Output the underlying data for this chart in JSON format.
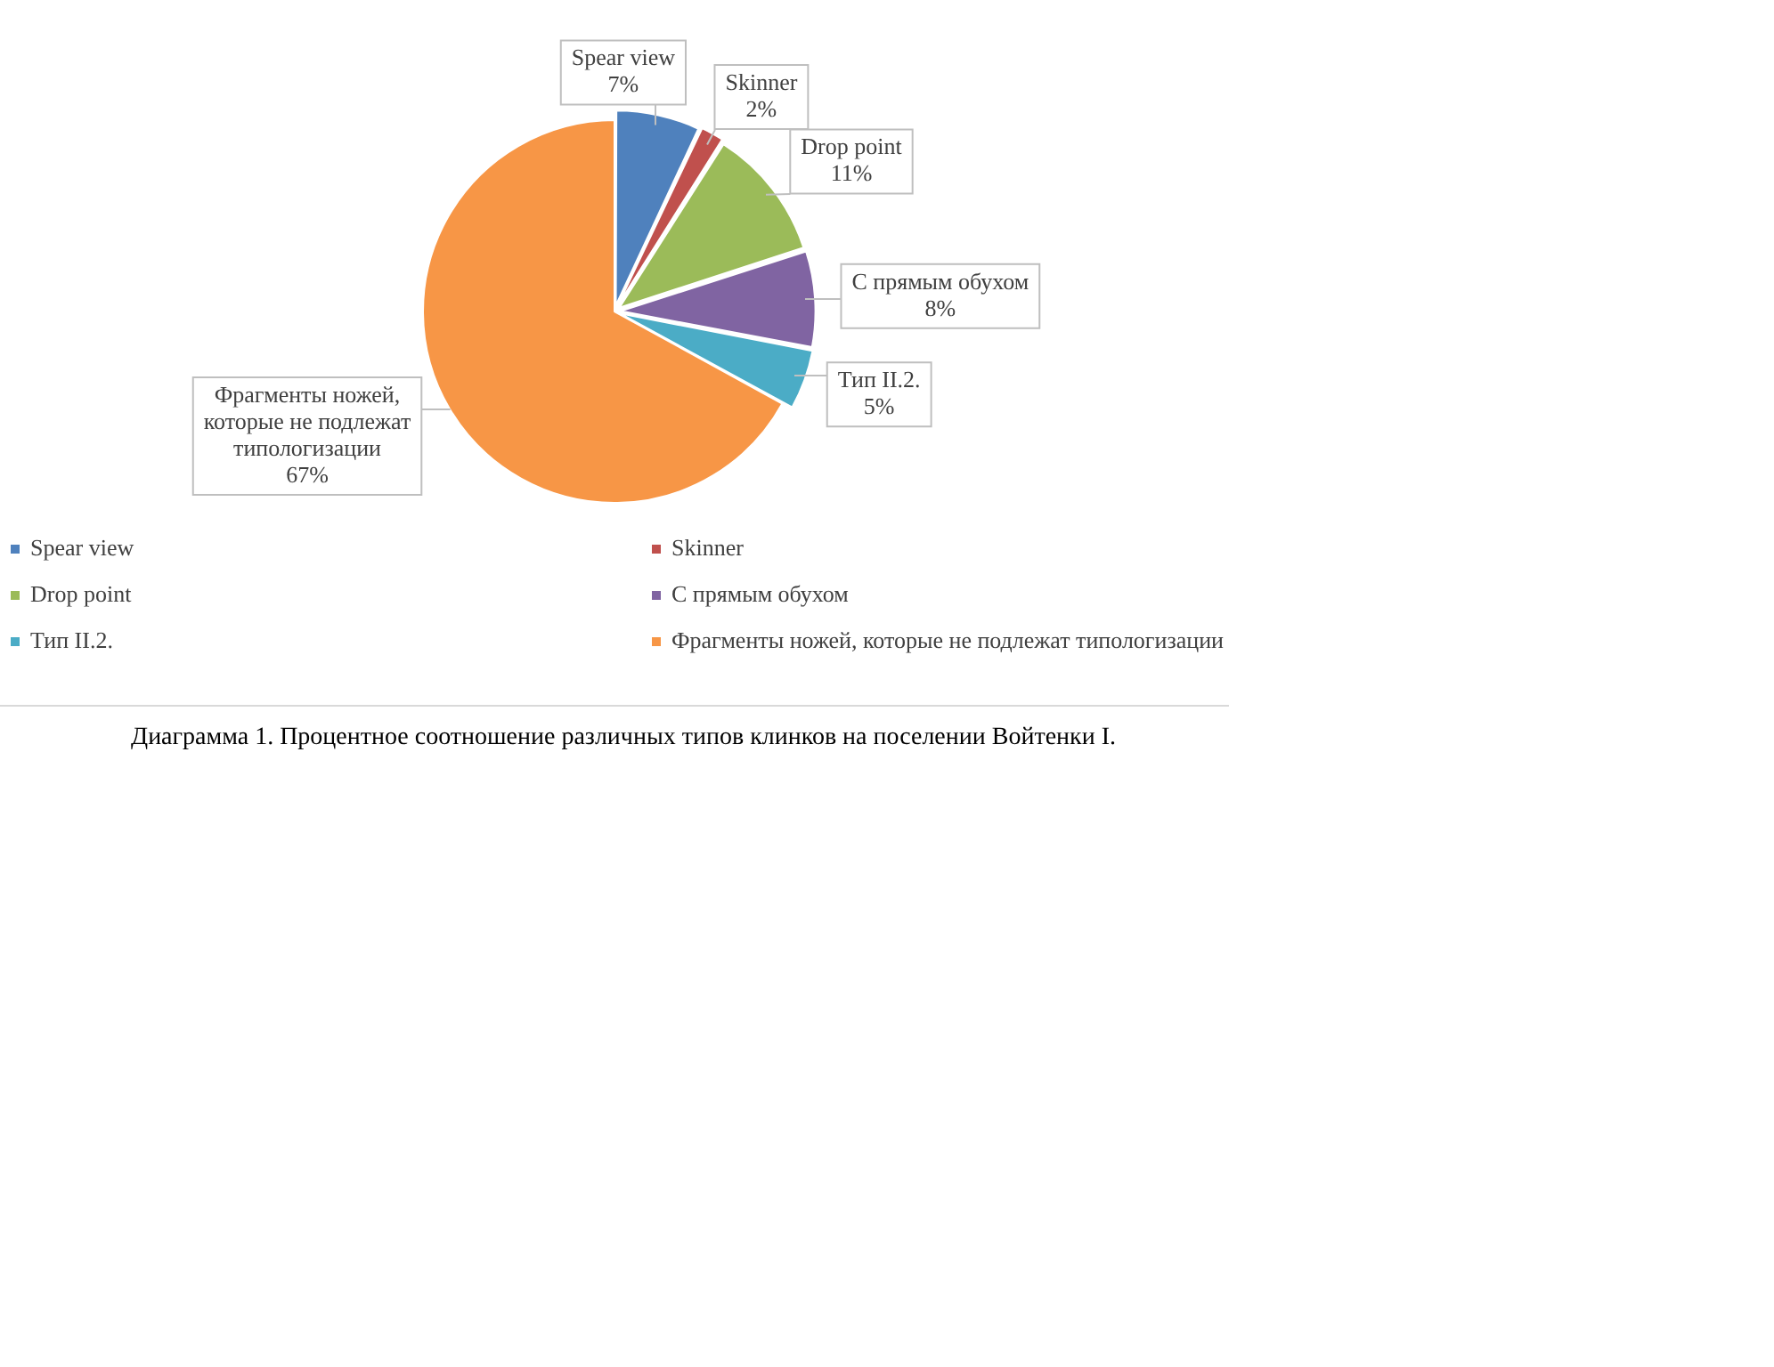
{
  "chart_data": {
    "type": "pie",
    "categories": [
      "Spear view",
      "Skinner",
      "Drop point",
      "С прямым обухом",
      "Тип II.2.",
      "Фрагменты ножей, которые не подлежат типологизации"
    ],
    "values": [
      7,
      2,
      11,
      8,
      5,
      67
    ],
    "value_labels": [
      "7%",
      "2%",
      "11%",
      "8%",
      "5%",
      "67%"
    ],
    "colors": [
      "#4f81bd",
      "#c0504d",
      "#9bbb59",
      "#8064a2",
      "#4bacc6",
      "#f79646"
    ],
    "legend": "bottom",
    "annotations": [
      "Диаграмма 1. Процентное соотношение различных типов клинков на поселении Войтенки I."
    ]
  }
}
